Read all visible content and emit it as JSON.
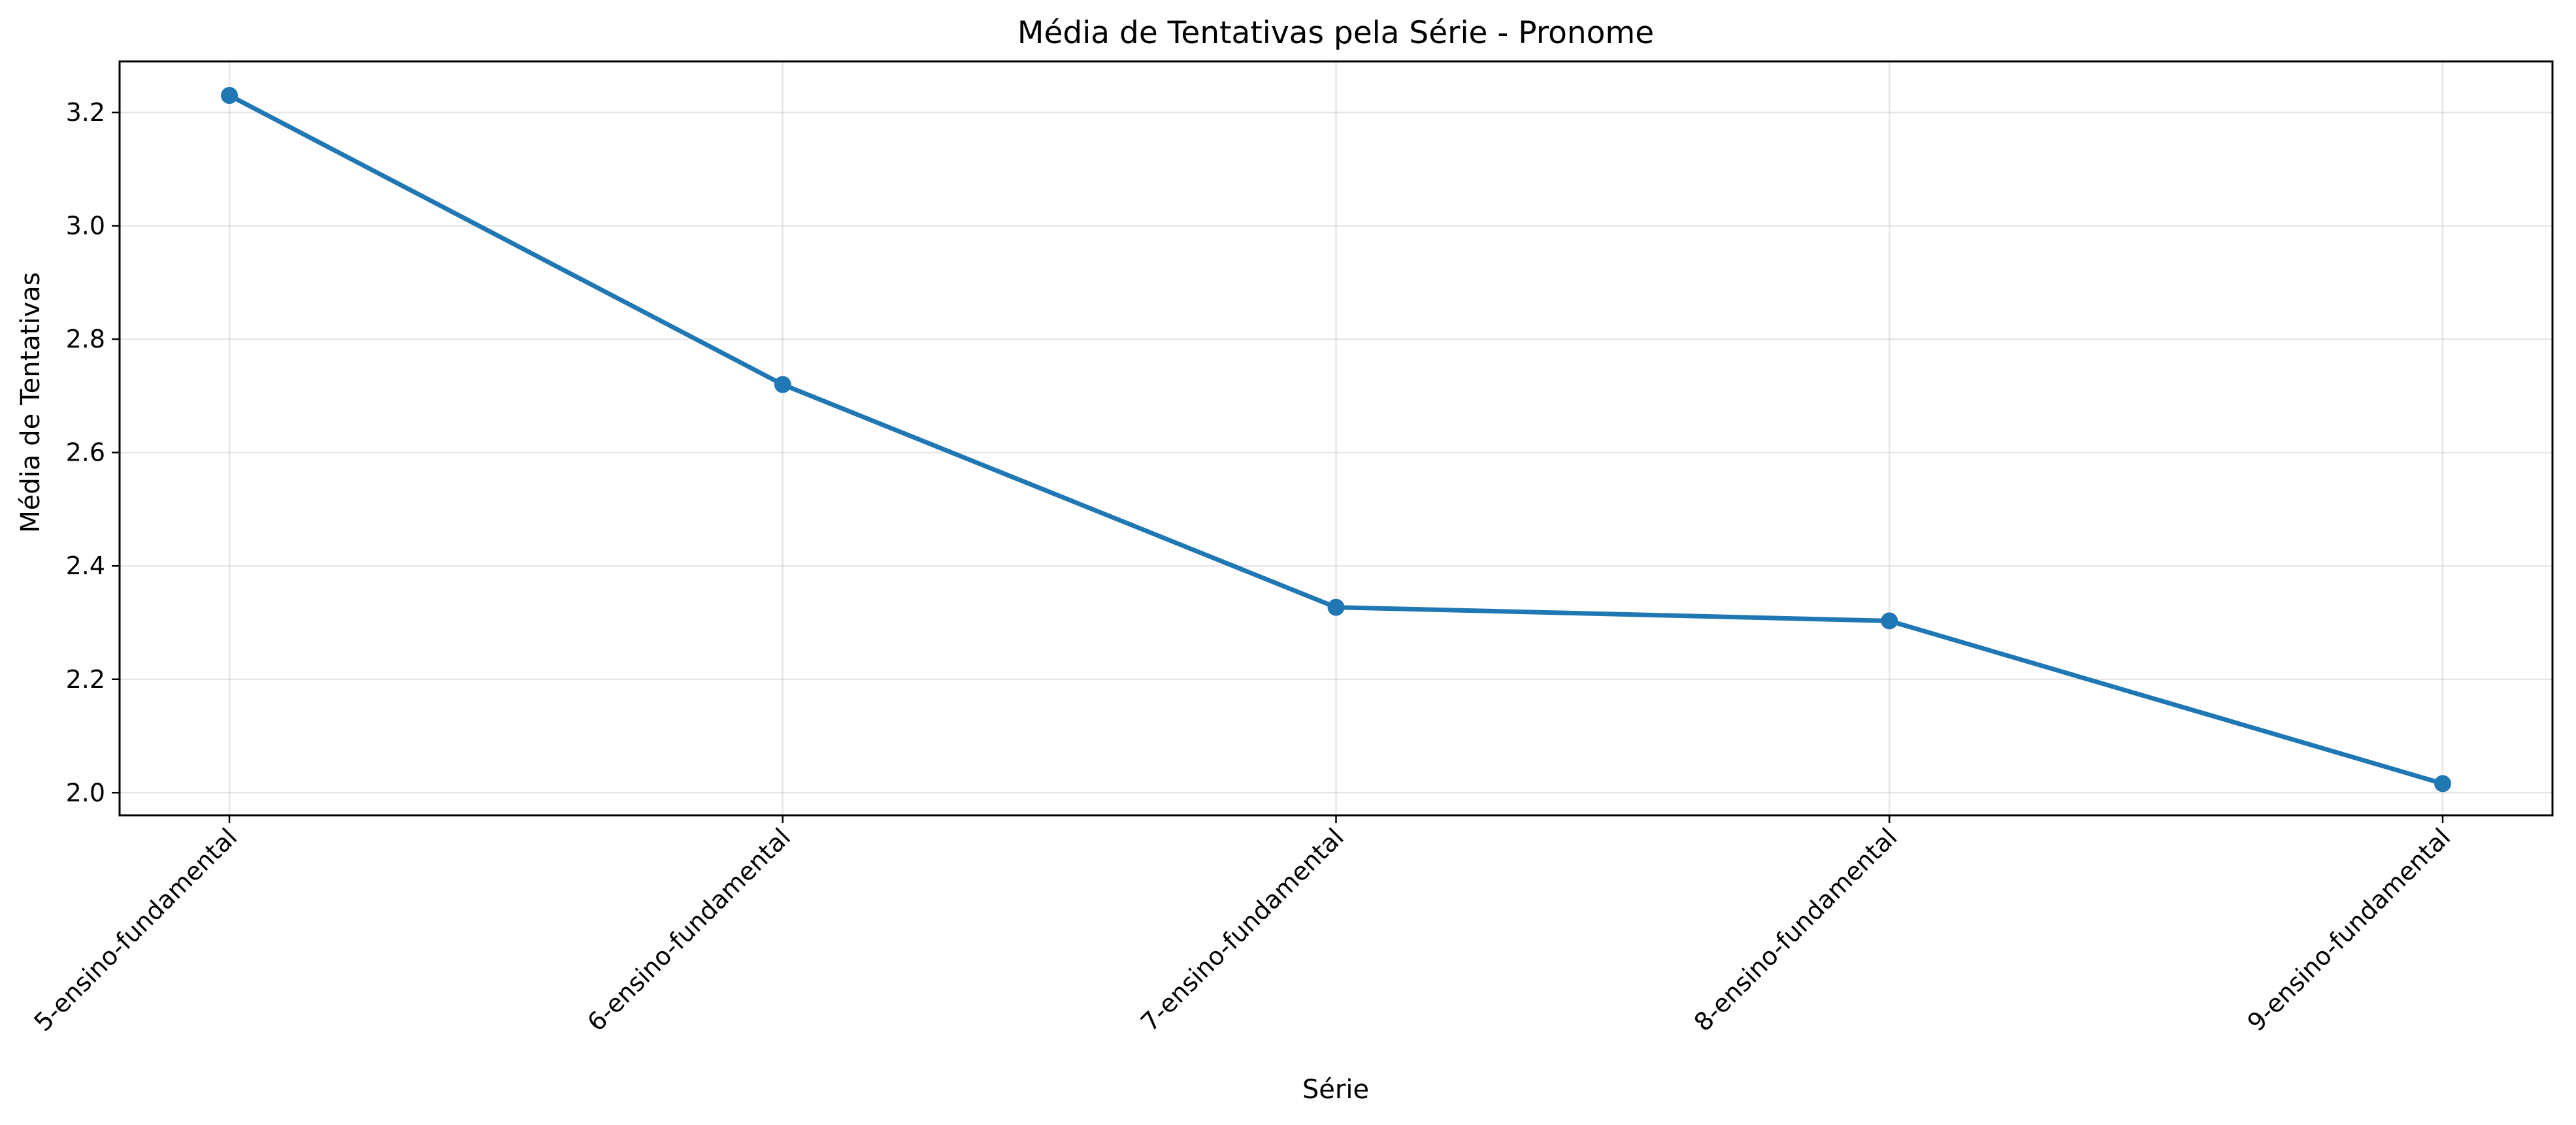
{
  "chart_data": {
    "type": "line",
    "title": "Média de Tentativas pela Série - Pronome",
    "xlabel": "Série",
    "ylabel": "Média de Tentativas",
    "categories": [
      "5-ensino-fundamental",
      "6-ensino-fundamental",
      "7-ensino-fundamental",
      "8-ensino-fundamental",
      "9-ensino-fundamental"
    ],
    "series": [
      {
        "values": [
          3.23,
          2.72,
          2.327,
          2.303,
          2.016
        ],
        "color": "#1f77b4"
      }
    ],
    "ylim": [
      1.96,
      3.29
    ],
    "yticks": [
      2.0,
      2.2,
      2.4,
      2.6,
      2.8,
      3.0,
      3.2
    ],
    "ytick_labels": [
      "2.0",
      "2.2",
      "2.4",
      "2.6",
      "2.8",
      "3.0",
      "3.2"
    ],
    "grid": true,
    "legend": false,
    "marker": "circle"
  }
}
